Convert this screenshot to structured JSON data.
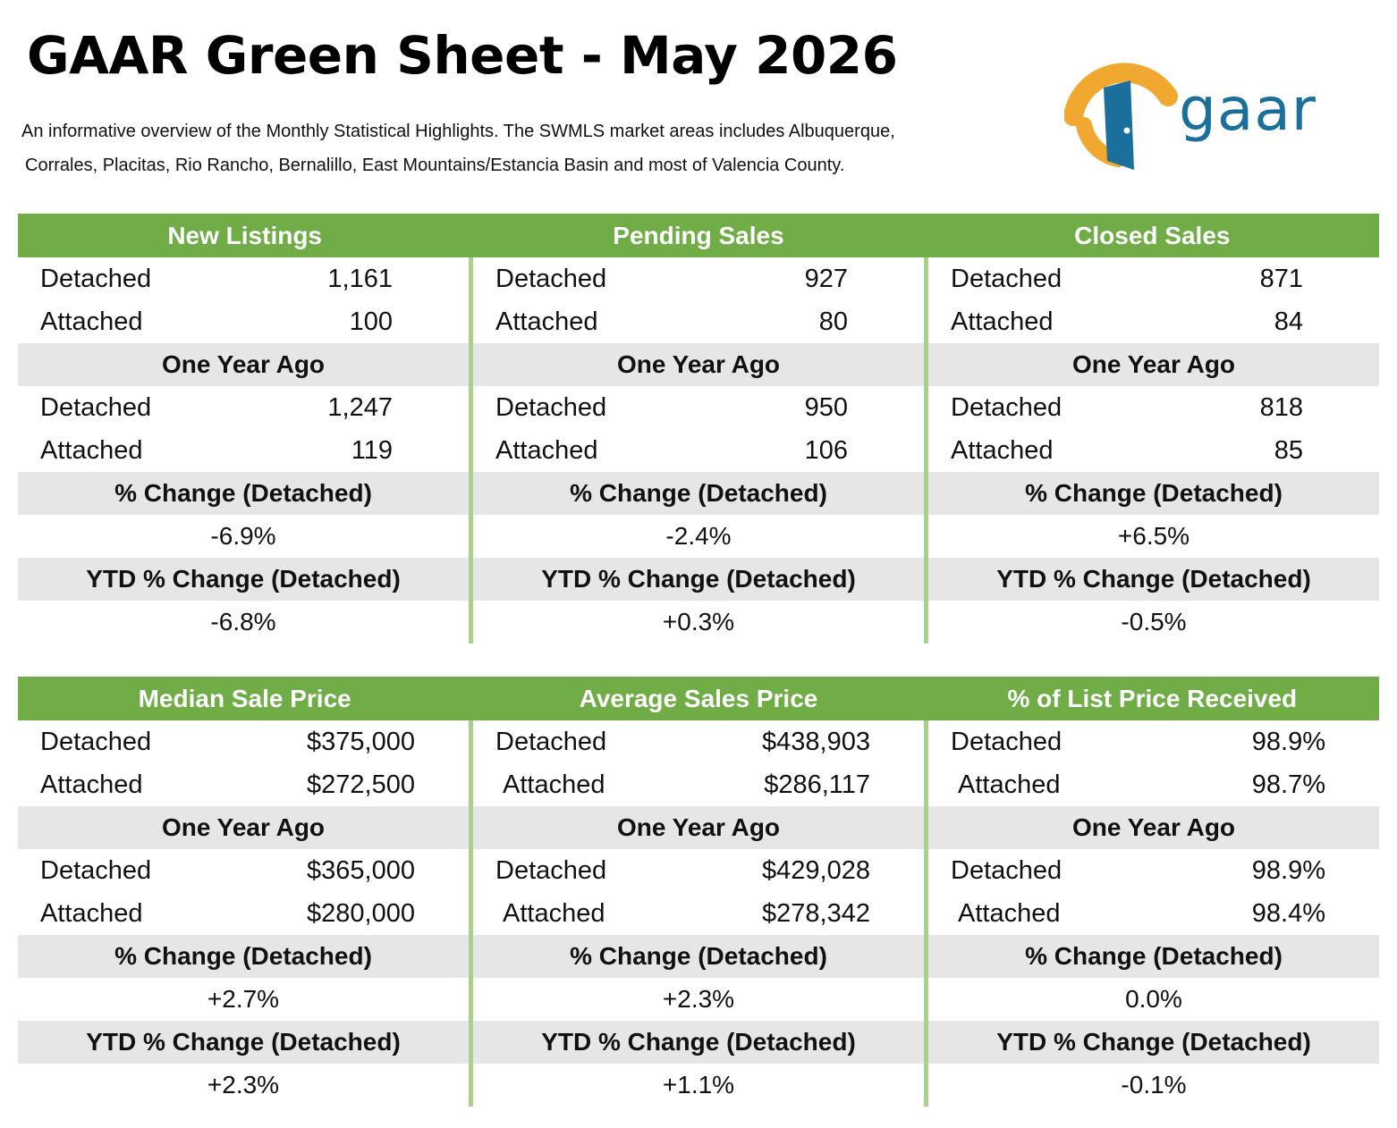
{
  "title": "GAAR Green Sheet - May 2026",
  "intro": {
    "line1": "An informative overview of the Monthly Statistical Highlights. The SWMLS market areas includes Albuquerque,",
    "line2": "Corrales, Placitas, Rio Rancho, Bernalillo, East Mountains/Estancia Basin and most of Valencia County."
  },
  "logo": {
    "text": "gaar",
    "colors": {
      "door": "#1b6f9c",
      "arch": "#f0a830"
    }
  },
  "colors": {
    "header_green": "#70ad47",
    "divider_green": "#a9d18e",
    "grey_band": "#e6e6e6"
  },
  "labels": {
    "detached": "Detached",
    "attached": "Attached",
    "one_year_ago": "One Year Ago",
    "pct_change": "% Change (Detached)",
    "ytd_change": "YTD % Change (Detached)"
  },
  "panel1": [
    {
      "title": "New Listings",
      "detached": "1,161",
      "attached": "100",
      "ya_detached": "1,247",
      "ya_attached": "119",
      "pct": "-6.9%",
      "ytd": "-6.8%"
    },
    {
      "title": "Pending Sales",
      "detached": "927",
      "attached": "80",
      "ya_detached": "950",
      "ya_attached": "106",
      "pct": "-2.4%",
      "ytd": "+0.3%"
    },
    {
      "title": "Closed Sales",
      "detached": "871",
      "attached": "84",
      "ya_detached": "818",
      "ya_attached": "85",
      "pct": "+6.5%",
      "ytd": "-0.5%"
    }
  ],
  "panel2": [
    {
      "title": "Median Sale Price",
      "detached": "$375,000",
      "attached": "$272,500",
      "ya_detached": "$365,000",
      "ya_attached": "$280,000",
      "pct": "+2.7%",
      "ytd": "+2.3%"
    },
    {
      "title": "Average Sales Price",
      "detached": "$438,903",
      "attached": "$286,117",
      "ya_detached": "$429,028",
      "ya_attached": "$278,342",
      "pct": "+2.3%",
      "ytd": "+1.1%"
    },
    {
      "title": "% of List Price Received",
      "detached": "98.9%",
      "attached": "98.7%",
      "ya_detached": "98.9%",
      "ya_attached": "98.4%",
      "pct": "0.0%",
      "ytd": "-0.1%"
    }
  ]
}
